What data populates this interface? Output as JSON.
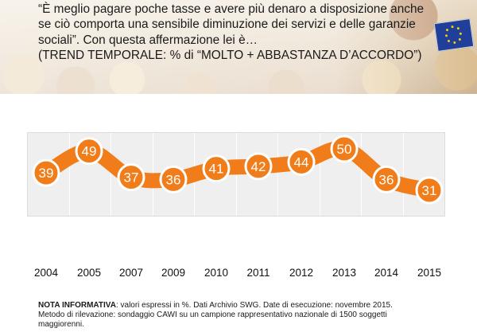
{
  "question": {
    "line1": "“È meglio pagare poche tasse e avere più denaro a disposizione anche",
    "line2": "se ciò comporta una sensibile diminuzione dei servizi e delle garanzie",
    "line3": "sociali”. Con questa affermazione lei è…",
    "line4": "(TREND TEMPORALE: % di “MOLTO + ABBASTANZA D’ACCORDO”)"
  },
  "chart_data": {
    "type": "line",
    "categories": [
      "2004",
      "2005",
      "2007",
      "2009",
      "2010",
      "2011",
      "2012",
      "2013",
      "2014",
      "2015"
    ],
    "values": [
      39,
      49,
      37,
      36,
      41,
      42,
      44,
      50,
      36,
      31
    ],
    "series_color": "#f07d1a",
    "grid": true
  },
  "note": {
    "label": "NOTA INFORMATIVA",
    "line1_text": ": valori espressi in %. Dati Archivio SWG. Date di esecuzione: novembre 2015.",
    "line2": "Metodo di rilevazione: sondaggio CAWI su un campione rappresentativo nazionale di 1500 soggetti",
    "line3": "maggiorenni."
  }
}
